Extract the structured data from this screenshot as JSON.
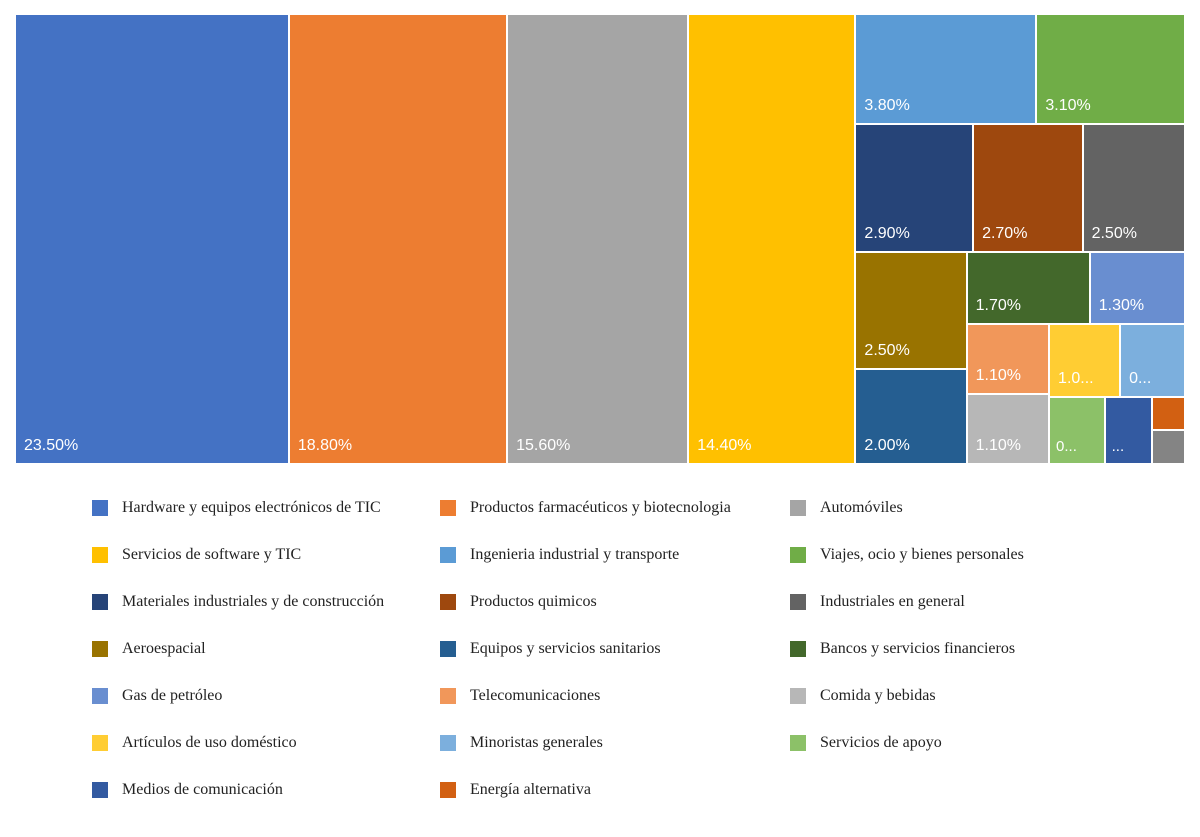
{
  "chart_data": {
    "type": "treemap",
    "title": "",
    "unit": "%",
    "legend_position": "bottom",
    "items": [
      {
        "name": "Hardware y equipos electrónicos de TIC",
        "value": 23.5,
        "label": "23.50%",
        "color": "#4472C4"
      },
      {
        "name": "Productos farmacéuticos y biotecnologia",
        "value": 18.8,
        "label": "18.80%",
        "color": "#ED7D31"
      },
      {
        "name": "Automóviles",
        "value": 15.6,
        "label": "15.60%",
        "color": "#A5A5A5"
      },
      {
        "name": "Servicios de software y TIC",
        "value": 14.4,
        "label": "14.40%",
        "color": "#FFC000"
      },
      {
        "name": "Ingenieria industrial y transporte",
        "value": 3.8,
        "label": "3.80%",
        "color": "#5B9BD5"
      },
      {
        "name": "Viajes, ocio y bienes personales",
        "value": 3.1,
        "label": "3.10%",
        "color": "#70AD47"
      },
      {
        "name": "Materiales industriales y de construcción",
        "value": 2.9,
        "label": "2.90%",
        "color": "#264478"
      },
      {
        "name": "Productos quimicos",
        "value": 2.7,
        "label": "2.70%",
        "color": "#9E480E"
      },
      {
        "name": "Industriales en general",
        "value": 2.5,
        "label": "2.50%",
        "color": "#636363"
      },
      {
        "name": "Aeroespacial",
        "value": 2.5,
        "label": "2.50%",
        "color": "#997300"
      },
      {
        "name": "Equipos y servicios sanitarios",
        "value": 2.0,
        "label": "2.00%",
        "color": "#255E91"
      },
      {
        "name": "Bancos y servicios financieros",
        "value": 1.7,
        "label": "1.70%",
        "color": "#43682B"
      },
      {
        "name": "Gas de petróleo",
        "value": 1.3,
        "label": "1.30%",
        "color": "#698ED0"
      },
      {
        "name": "Telecomunicaciones",
        "value": 1.1,
        "label": "1.10%",
        "color": "#F1975A"
      },
      {
        "name": "Comida y bebidas",
        "value": 1.1,
        "label": "1.10%",
        "color": "#B7B7B7"
      },
      {
        "name": "Artículos de uso doméstico",
        "value": 1.0,
        "label": "1.0...",
        "color": "#FFCD33"
      },
      {
        "name": "Minoristas generales",
        "value": 0.9,
        "label": "0...",
        "color": "#7CAFDD"
      },
      {
        "name": "Servicios de apoyo",
        "value": 0.7,
        "label": "0...",
        "color": "#8CC168"
      },
      {
        "name": "Medios de comunicación",
        "value": 0.6,
        "label": "...",
        "color": "#335AA1"
      },
      {
        "name": "Energía alternativa",
        "value": 0.2,
        "label": "",
        "color": "#D26012"
      },
      {
        "name": "",
        "value": 0.2,
        "label": "",
        "color": "#848484"
      }
    ]
  },
  "legend": {
    "columns": 3,
    "entries": [
      {
        "label": "Hardware y equipos electrónicos de TIC",
        "color": "#4472C4"
      },
      {
        "label": "Productos farmacéuticos y biotecnologia",
        "color": "#ED7D31"
      },
      {
        "label": "Automóviles",
        "color": "#A5A5A5"
      },
      {
        "label": "Servicios de software y TIC",
        "color": "#FFC000"
      },
      {
        "label": "Ingenieria industrial y transporte",
        "color": "#5B9BD5"
      },
      {
        "label": "Viajes, ocio y bienes personales",
        "color": "#70AD47"
      },
      {
        "label": "Materiales industriales y de construcción",
        "color": "#264478"
      },
      {
        "label": "Productos quimicos",
        "color": "#9E480E"
      },
      {
        "label": "Industriales en general",
        "color": "#636363"
      },
      {
        "label": "Aeroespacial",
        "color": "#997300"
      },
      {
        "label": "Equipos y servicios sanitarios",
        "color": "#255E91"
      },
      {
        "label": "Bancos y servicios financieros",
        "color": "#43682B"
      },
      {
        "label": "Gas de petróleo",
        "color": "#698ED0"
      },
      {
        "label": "Telecomunicaciones",
        "color": "#F1975A"
      },
      {
        "label": "Comida y bebidas",
        "color": "#B7B7B7"
      },
      {
        "label": "Artículos de uso doméstico",
        "color": "#FFCD33"
      },
      {
        "label": "Minoristas generales",
        "color": "#7CAFDD"
      },
      {
        "label": "Servicios de apoyo",
        "color": "#8CC168"
      },
      {
        "label": "Medios de comunicación",
        "color": "#335AA1"
      },
      {
        "label": "Energía alternativa",
        "color": "#D26012"
      }
    ]
  }
}
